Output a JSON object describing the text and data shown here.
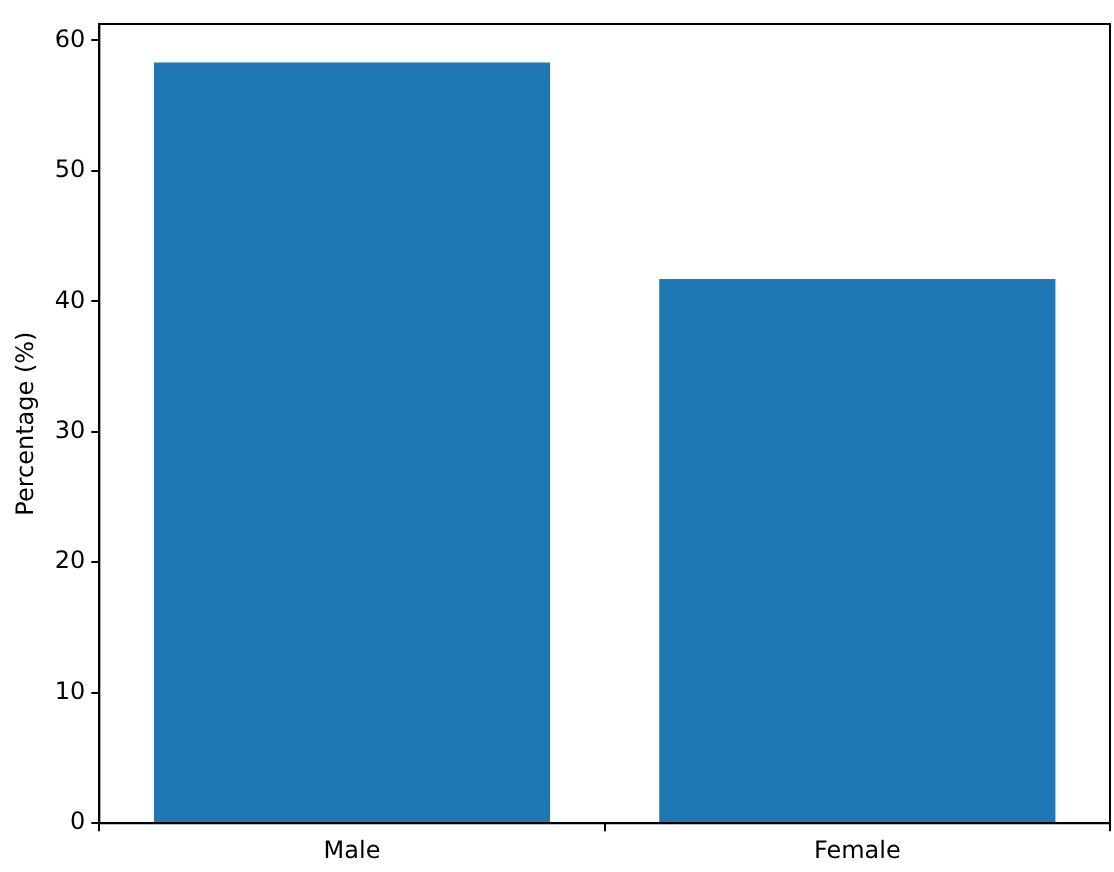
{
  "chart_data": {
    "type": "bar",
    "ylabel": "Percentage (%)",
    "categories": [
      "Male",
      "Female"
    ],
    "values": [
      58.3,
      41.7
    ],
    "color": "#1f77b4",
    "ylim": [
      0,
      61.25
    ],
    "yticks": [
      0,
      10,
      20,
      30,
      40,
      50,
      60
    ],
    "grid": false,
    "legend": false
  }
}
